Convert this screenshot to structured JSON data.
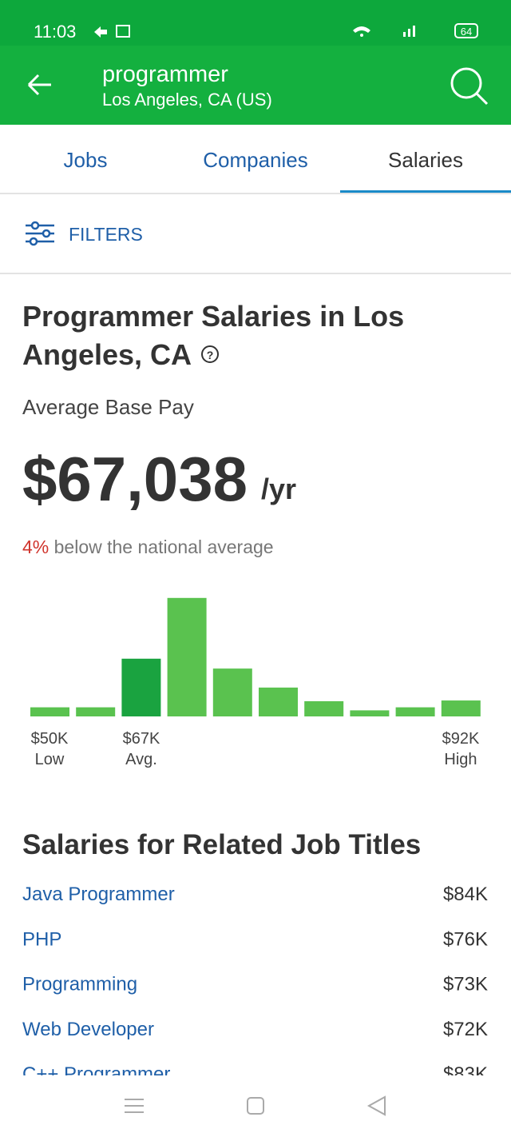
{
  "status_bar": {
    "time": "11:03",
    "battery": "64"
  },
  "header": {
    "query": "programmer",
    "location": "Los Angeles, CA (US)"
  },
  "tabs": [
    "Jobs",
    "Companies",
    "Salaries"
  ],
  "filters": "FILTERS",
  "summary": {
    "title_line1": "Programmer Salaries in Los",
    "title_line2": "Angeles, CA",
    "pay_label": "Average Base Pay",
    "pay": "$67,038",
    "pay_unit": "/yr",
    "comparison_pct": "4%",
    "comparison_text": "below the national average"
  },
  "histogram": {
    "values": [
      12,
      12,
      76,
      156,
      63,
      38,
      20,
      8,
      12,
      21
    ],
    "ylim": [
      0,
      160
    ],
    "color": "#5ac24f",
    "highlight_color": "#1aa340",
    "highlight": 2,
    "labels": [
      {
        "amount": "$50K",
        "caption": "Low"
      },
      {
        "amount": "$67K",
        "caption": "Avg."
      },
      {
        "amount": "$92K",
        "caption": "High"
      }
    ]
  },
  "related": {
    "title": "Salaries for Related Job Titles",
    "rows": [
      [
        "Java Programmer",
        "$84K"
      ],
      [
        "PHP",
        "$76K"
      ],
      [
        "Programming",
        "$73K"
      ],
      [
        "Web Developer",
        "$72K"
      ],
      [
        "C++ Programmer",
        "$83K"
      ]
    ]
  }
}
